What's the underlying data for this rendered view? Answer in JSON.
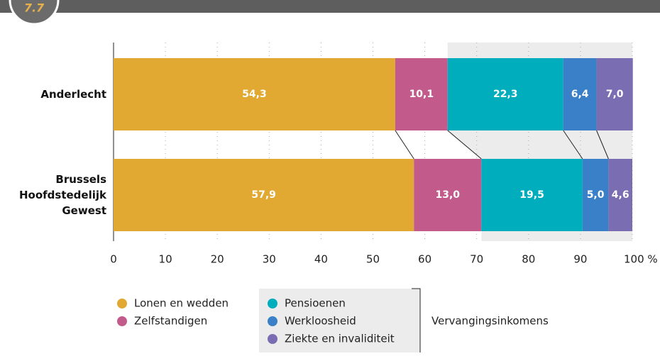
{
  "badge": "7.7",
  "chart_data": {
    "type": "stacked-bar-horizontal",
    "categories": [
      "Anderlecht",
      "Brussels Hoofdstedelijk Gewest"
    ],
    "series": [
      {
        "name": "Lonen en wedden",
        "color": "#e1a832",
        "values": [
          54.3,
          57.9
        ],
        "value_labels": [
          "54,3",
          "57,9"
        ]
      },
      {
        "name": "Zelfstandigen",
        "color": "#c25b8c",
        "values": [
          10.1,
          13.0
        ],
        "value_labels": [
          "10,1",
          "13,0"
        ]
      },
      {
        "name": "Pensioenen",
        "color": "#00adbc",
        "values": [
          22.3,
          19.5
        ],
        "value_labels": [
          "22,3",
          "19,5"
        ]
      },
      {
        "name": "Werkloosheid",
        "color": "#3a80c8",
        "values": [
          6.4,
          5.0
        ],
        "value_labels": [
          "6,4",
          "5,0"
        ]
      },
      {
        "name": "Ziekte en invaliditeit",
        "color": "#7a6db2",
        "values": [
          7.0,
          4.6
        ],
        "value_labels": [
          "7,0",
          "4,6"
        ]
      }
    ],
    "legend_group": {
      "label": "Vervangingsinkomens",
      "series": [
        2,
        3,
        4
      ]
    },
    "xlim": [
      0,
      100
    ],
    "xticks": [
      0,
      10,
      20,
      30,
      40,
      50,
      60,
      70,
      80,
      90,
      {
        "value": 100,
        "label": "100 %"
      }
    ],
    "grid": true
  }
}
